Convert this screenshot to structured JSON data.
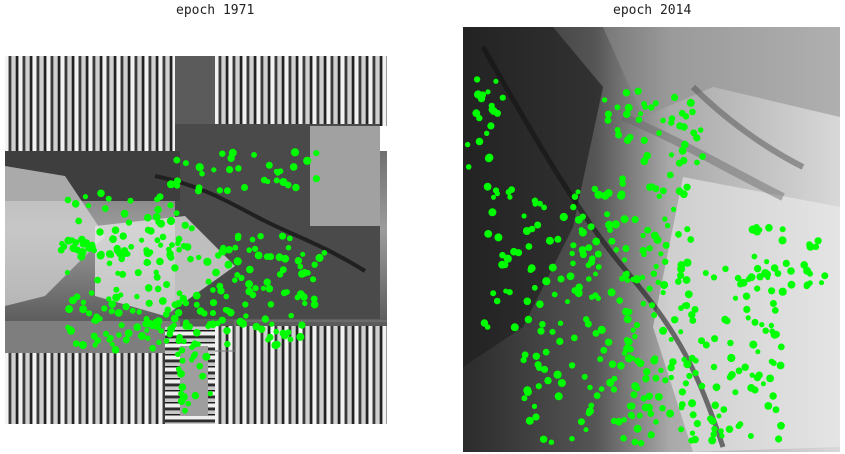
{
  "panels": [
    {
      "title": "epoch 1971"
    },
    {
      "title": "epoch 2014"
    }
  ],
  "colors": {
    "points": "#00ff00",
    "background": "#ffffff"
  }
}
